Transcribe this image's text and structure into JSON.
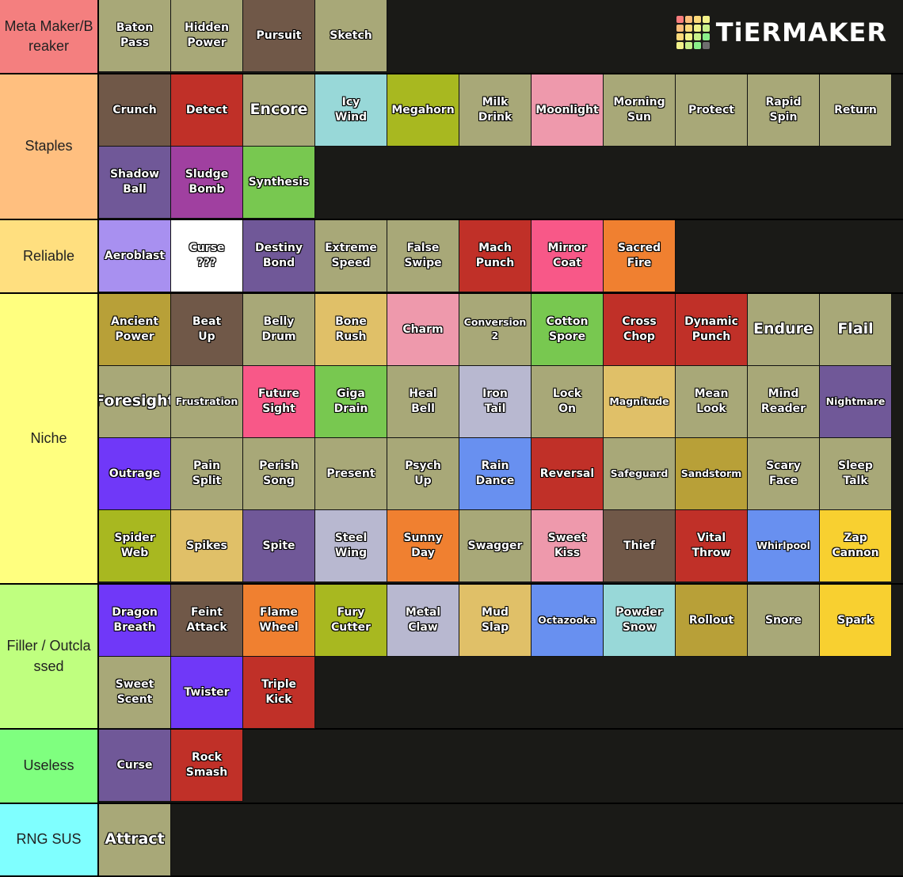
{
  "logo": {
    "text": "TiERMAKER",
    "grid_colors": [
      "#f97d7d",
      "#fbbd7a",
      "#fcd97a",
      "#f2f28a",
      "#fbbd7a",
      "#fcd97a",
      "#f2f28a",
      "#c8f08a",
      "#fcd97a",
      "#f2f28a",
      "#c8f08a",
      "#8af08a",
      "#f2f28a",
      "#c8f08a",
      "#8af08a",
      "#6e6e6e"
    ]
  },
  "tiers": [
    {
      "label": "Meta Maker/Breaker",
      "color": "#f47f7f",
      "items": [
        {
          "text": "Baton\nPass",
          "color": "#a8a878"
        },
        {
          "text": "Hidden\nPower",
          "color": "#a8a878"
        },
        {
          "text": "Pursuit",
          "color": "#705848"
        },
        {
          "text": "Sketch",
          "color": "#a8a878"
        }
      ]
    },
    {
      "label": "Staples",
      "color": "#ffbf7f",
      "items": [
        {
          "text": "Crunch",
          "color": "#705848"
        },
        {
          "text": "Detect",
          "color": "#c03028"
        },
        {
          "text": "Encore",
          "color": "#a8a878",
          "size": "big"
        },
        {
          "text": "Icy\nWind",
          "color": "#98d8d8"
        },
        {
          "text": "Megahorn",
          "color": "#a8b820"
        },
        {
          "text": "Milk\nDrink",
          "color": "#a8a878"
        },
        {
          "text": "Moonlight",
          "color": "#ee99ac"
        },
        {
          "text": "Morning\nSun",
          "color": "#a8a878"
        },
        {
          "text": "Protect",
          "color": "#a8a878"
        },
        {
          "text": "Rapid\nSpin",
          "color": "#a8a878"
        },
        {
          "text": "Return",
          "color": "#a8a878"
        },
        {
          "text": "Shadow\nBall",
          "color": "#705898"
        },
        {
          "text": "Sludge\nBomb",
          "color": "#a040a0"
        },
        {
          "text": "Synthesis",
          "color": "#78c850"
        }
      ]
    },
    {
      "label": "Reliable",
      "color": "#ffdf7f",
      "items": [
        {
          "text": "Aeroblast",
          "color": "#a890f0"
        },
        {
          "text": "Curse\n???",
          "color": "#ffffff"
        },
        {
          "text": "Destiny\nBond",
          "color": "#705898"
        },
        {
          "text": "Extreme\nSpeed",
          "color": "#a8a878"
        },
        {
          "text": "False\nSwipe",
          "color": "#a8a878"
        },
        {
          "text": "Mach\nPunch",
          "color": "#c03028"
        },
        {
          "text": "Mirror\nCoat",
          "color": "#f85888"
        },
        {
          "text": "Sacred\nFire",
          "color": "#f08030"
        }
      ]
    },
    {
      "label": "Niche",
      "color": "#ffff7f",
      "items": [
        {
          "text": "Ancient\nPower",
          "color": "#b8a038"
        },
        {
          "text": "Beat\nUp",
          "color": "#705848"
        },
        {
          "text": "Belly\nDrum",
          "color": "#a8a878"
        },
        {
          "text": "Bone\nRush",
          "color": "#e0c068"
        },
        {
          "text": "Charm",
          "color": "#ee99ac"
        },
        {
          "text": "Conversion\n2",
          "color": "#a8a878",
          "size": "small"
        },
        {
          "text": "Cotton\nSpore",
          "color": "#78c850"
        },
        {
          "text": "Cross\nChop",
          "color": "#c03028"
        },
        {
          "text": "Dynamic\nPunch",
          "color": "#c03028"
        },
        {
          "text": "Endure",
          "color": "#a8a878",
          "size": "big"
        },
        {
          "text": "Flail",
          "color": "#a8a878",
          "size": "big"
        },
        {
          "text": "Foresight",
          "color": "#a8a878",
          "size": "big"
        },
        {
          "text": "Frustration",
          "color": "#a8a878",
          "size": "small"
        },
        {
          "text": "Future\nSight",
          "color": "#f85888"
        },
        {
          "text": "Giga\nDrain",
          "color": "#78c850"
        },
        {
          "text": "Heal\nBell",
          "color": "#a8a878"
        },
        {
          "text": "Iron\nTail",
          "color": "#b8b8d0"
        },
        {
          "text": "Lock\nOn",
          "color": "#a8a878"
        },
        {
          "text": "Magnitude",
          "color": "#e0c068",
          "size": "small"
        },
        {
          "text": "Mean\nLook",
          "color": "#a8a878"
        },
        {
          "text": "Mind\nReader",
          "color": "#a8a878"
        },
        {
          "text": "Nightmare",
          "color": "#705898",
          "size": "small"
        },
        {
          "text": "Outrage",
          "color": "#7038f8"
        },
        {
          "text": "Pain\nSplit",
          "color": "#a8a878"
        },
        {
          "text": "Perish\nSong",
          "color": "#a8a878"
        },
        {
          "text": "Present",
          "color": "#a8a878"
        },
        {
          "text": "Psych\nUp",
          "color": "#a8a878"
        },
        {
          "text": "Rain\nDance",
          "color": "#6890f0"
        },
        {
          "text": "Reversal",
          "color": "#c03028"
        },
        {
          "text": "Safeguard",
          "color": "#a8a878",
          "size": "small"
        },
        {
          "text": "Sandstorm",
          "color": "#b8a038",
          "size": "small"
        },
        {
          "text": "Scary\nFace",
          "color": "#a8a878"
        },
        {
          "text": "Sleep\nTalk",
          "color": "#a8a878"
        },
        {
          "text": "Spider\nWeb",
          "color": "#a8b820"
        },
        {
          "text": "Spikes",
          "color": "#e0c068"
        },
        {
          "text": "Spite",
          "color": "#705898"
        },
        {
          "text": "Steel\nWing",
          "color": "#b8b8d0"
        },
        {
          "text": "Sunny\nDay",
          "color": "#f08030"
        },
        {
          "text": "Swagger",
          "color": "#a8a878"
        },
        {
          "text": "Sweet\nKiss",
          "color": "#ee99ac"
        },
        {
          "text": "Thief",
          "color": "#705848"
        },
        {
          "text": "Vital\nThrow",
          "color": "#c03028"
        },
        {
          "text": "Whirlpool",
          "color": "#6890f0",
          "size": "small"
        },
        {
          "text": "Zap\nCannon",
          "color": "#f8d030"
        }
      ]
    },
    {
      "label": "Filler / Outclassed",
      "color": "#bfff7f",
      "items": [
        {
          "text": "Dragon\nBreath",
          "color": "#7038f8"
        },
        {
          "text": "Feint\nAttack",
          "color": "#705848"
        },
        {
          "text": "Flame\nWheel",
          "color": "#f08030"
        },
        {
          "text": "Fury\nCutter",
          "color": "#a8b820"
        },
        {
          "text": "Metal\nClaw",
          "color": "#b8b8d0"
        },
        {
          "text": "Mud\nSlap",
          "color": "#e0c068"
        },
        {
          "text": "Octazooka",
          "color": "#6890f0",
          "size": "small"
        },
        {
          "text": "Powder\nSnow",
          "color": "#98d8d8"
        },
        {
          "text": "Rollout",
          "color": "#b8a038"
        },
        {
          "text": "Snore",
          "color": "#a8a878"
        },
        {
          "text": "Spark",
          "color": "#f8d030"
        },
        {
          "text": "Sweet\nScent",
          "color": "#a8a878"
        },
        {
          "text": "Twister",
          "color": "#7038f8"
        },
        {
          "text": "Triple\nKick",
          "color": "#c03028"
        }
      ]
    },
    {
      "label": "Useless",
      "color": "#7fff7f",
      "items": [
        {
          "text": "Curse",
          "color": "#705898"
        },
        {
          "text": "Rock\nSmash",
          "color": "#c03028"
        }
      ]
    },
    {
      "label": "RNG SUS",
      "color": "#7fffff",
      "items": [
        {
          "text": "Attract",
          "color": "#a8a878",
          "size": "big"
        }
      ]
    }
  ]
}
